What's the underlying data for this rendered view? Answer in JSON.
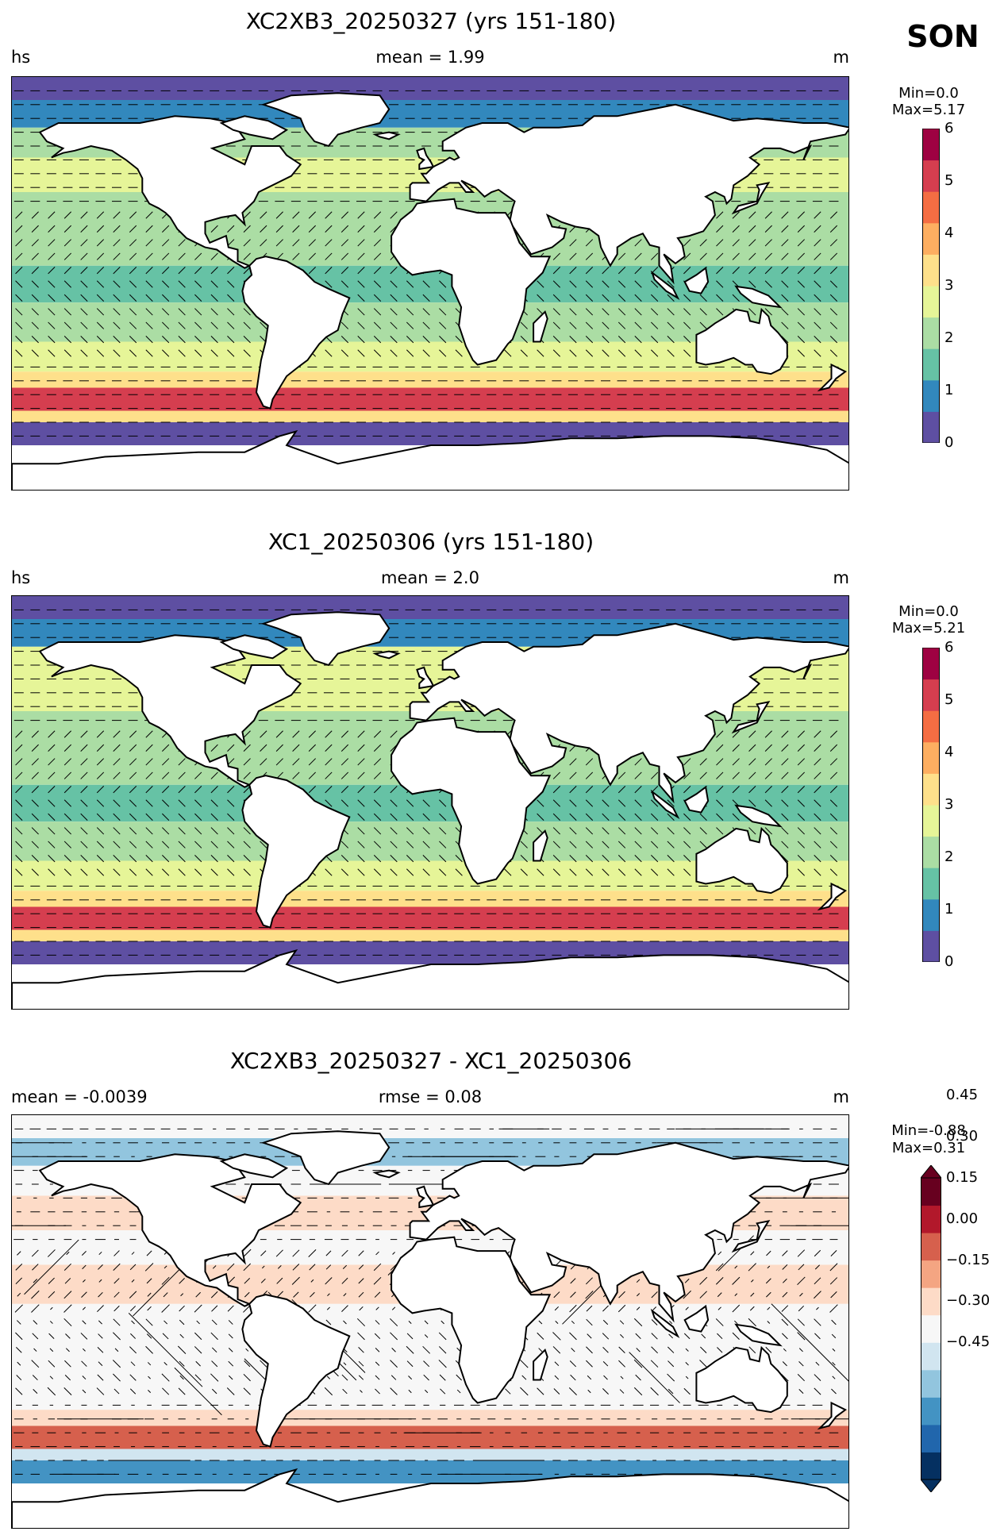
{
  "season": "SON",
  "panels": [
    {
      "title": "XC2XB3_20250327 (yrs 151-180)",
      "left": "hs",
      "center": "mean = 1.99",
      "right": "m",
      "min": "Min=0.0",
      "max": "Max=5.17",
      "ticks": [
        "0",
        "1",
        "2",
        "3",
        "4",
        "5",
        "6"
      ],
      "field_bands": [
        {
          "lat": [
            80,
            90
          ],
          "value": 0.3
        },
        {
          "lat": [
            68,
            80
          ],
          "value": 1.1
        },
        {
          "lat": [
            55,
            68
          ],
          "value": 2.3
        },
        {
          "lat": [
            40,
            55
          ],
          "value": 2.6
        },
        {
          "lat": [
            25,
            40
          ],
          "value": 2.1
        },
        {
          "lat": [
            8,
            25
          ],
          "value": 2.0
        },
        {
          "lat": [
            -8,
            8
          ],
          "value": 1.7
        },
        {
          "lat": [
            -25,
            -8
          ],
          "value": 2.1
        },
        {
          "lat": [
            -38,
            -25
          ],
          "value": 2.6
        },
        {
          "lat": [
            -45,
            -38
          ],
          "value": 3.4
        },
        {
          "lat": [
            -55,
            -45
          ],
          "value": 4.8
        },
        {
          "lat": [
            -60,
            -55
          ],
          "value": 3.2
        },
        {
          "lat": [
            -70,
            -60
          ],
          "value": 0.3
        },
        {
          "lat": [
            -90,
            -70
          ],
          "value": null
        }
      ]
    },
    {
      "title": "XC1_20250306 (yrs 151-180)",
      "left": "hs",
      "center": "mean = 2.0",
      "right": "m",
      "min": "Min=0.0",
      "max": "Max=5.21",
      "ticks": [
        "0",
        "1",
        "2",
        "3",
        "4",
        "5",
        "6"
      ],
      "field_bands": [
        {
          "lat": [
            80,
            90
          ],
          "value": 0.3
        },
        {
          "lat": [
            68,
            80
          ],
          "value": 1.1
        },
        {
          "lat": [
            55,
            68
          ],
          "value": 2.4
        },
        {
          "lat": [
            40,
            55
          ],
          "value": 2.7
        },
        {
          "lat": [
            25,
            40
          ],
          "value": 2.1
        },
        {
          "lat": [
            8,
            25
          ],
          "value": 1.9
        },
        {
          "lat": [
            -8,
            8
          ],
          "value": 1.6
        },
        {
          "lat": [
            -25,
            -8
          ],
          "value": 2.0
        },
        {
          "lat": [
            -38,
            -25
          ],
          "value": 2.6
        },
        {
          "lat": [
            -45,
            -38
          ],
          "value": 3.5
        },
        {
          "lat": [
            -55,
            -45
          ],
          "value": 4.8
        },
        {
          "lat": [
            -60,
            -55
          ],
          "value": 3.1
        },
        {
          "lat": [
            -70,
            -60
          ],
          "value": 0.3
        },
        {
          "lat": [
            -90,
            -70
          ],
          "value": null
        }
      ]
    },
    {
      "title": "XC2XB3_20250327 - XC1_20250306",
      "left": "mean = -0.0039",
      "center": "rmse = 0.08",
      "right": "m",
      "min": "Min=-0.88",
      "max": "Max=0.31",
      "ticks": [
        "−0.45",
        "−0.30",
        "−0.15",
        "0.00",
        "0.15",
        "0.30",
        "0.45"
      ],
      "field_bands": [
        {
          "lat": [
            80,
            90
          ],
          "value": -0.05
        },
        {
          "lat": [
            68,
            80
          ],
          "value": -0.2
        },
        {
          "lat": [
            55,
            68
          ],
          "value": -0.05
        },
        {
          "lat": [
            40,
            55
          ],
          "value": 0.05
        },
        {
          "lat": [
            25,
            40
          ],
          "value": 0.02
        },
        {
          "lat": [
            8,
            25
          ],
          "value": 0.05
        },
        {
          "lat": [
            -8,
            8
          ],
          "value": 0.0
        },
        {
          "lat": [
            -25,
            -8
          ],
          "value": 0.03
        },
        {
          "lat": [
            -38,
            -25
          ],
          "value": 0.04
        },
        {
          "lat": [
            -45,
            -38
          ],
          "value": 0.1
        },
        {
          "lat": [
            -55,
            -45
          ],
          "value": 0.25
        },
        {
          "lat": [
            -60,
            -55
          ],
          "value": -0.08
        },
        {
          "lat": [
            -70,
            -60
          ],
          "value": -0.35
        },
        {
          "lat": [
            -90,
            -70
          ],
          "value": null
        }
      ]
    }
  ],
  "colors": {
    "seq": [
      "#5e4fa2",
      "#3288bd",
      "#66c2a5",
      "#abdda4",
      "#e6f598",
      "#fee08b",
      "#fdae61",
      "#f46d43",
      "#d53e4f",
      "#9e0142"
    ],
    "div": [
      "#053061",
      "#2166ac",
      "#4393c3",
      "#92c5de",
      "#d1e5f0",
      "#f7f7f7",
      "#fddbc7",
      "#f4a582",
      "#d6604d",
      "#b2182b",
      "#67001f"
    ],
    "land": "#ffffff",
    "coast": "#000000"
  }
}
